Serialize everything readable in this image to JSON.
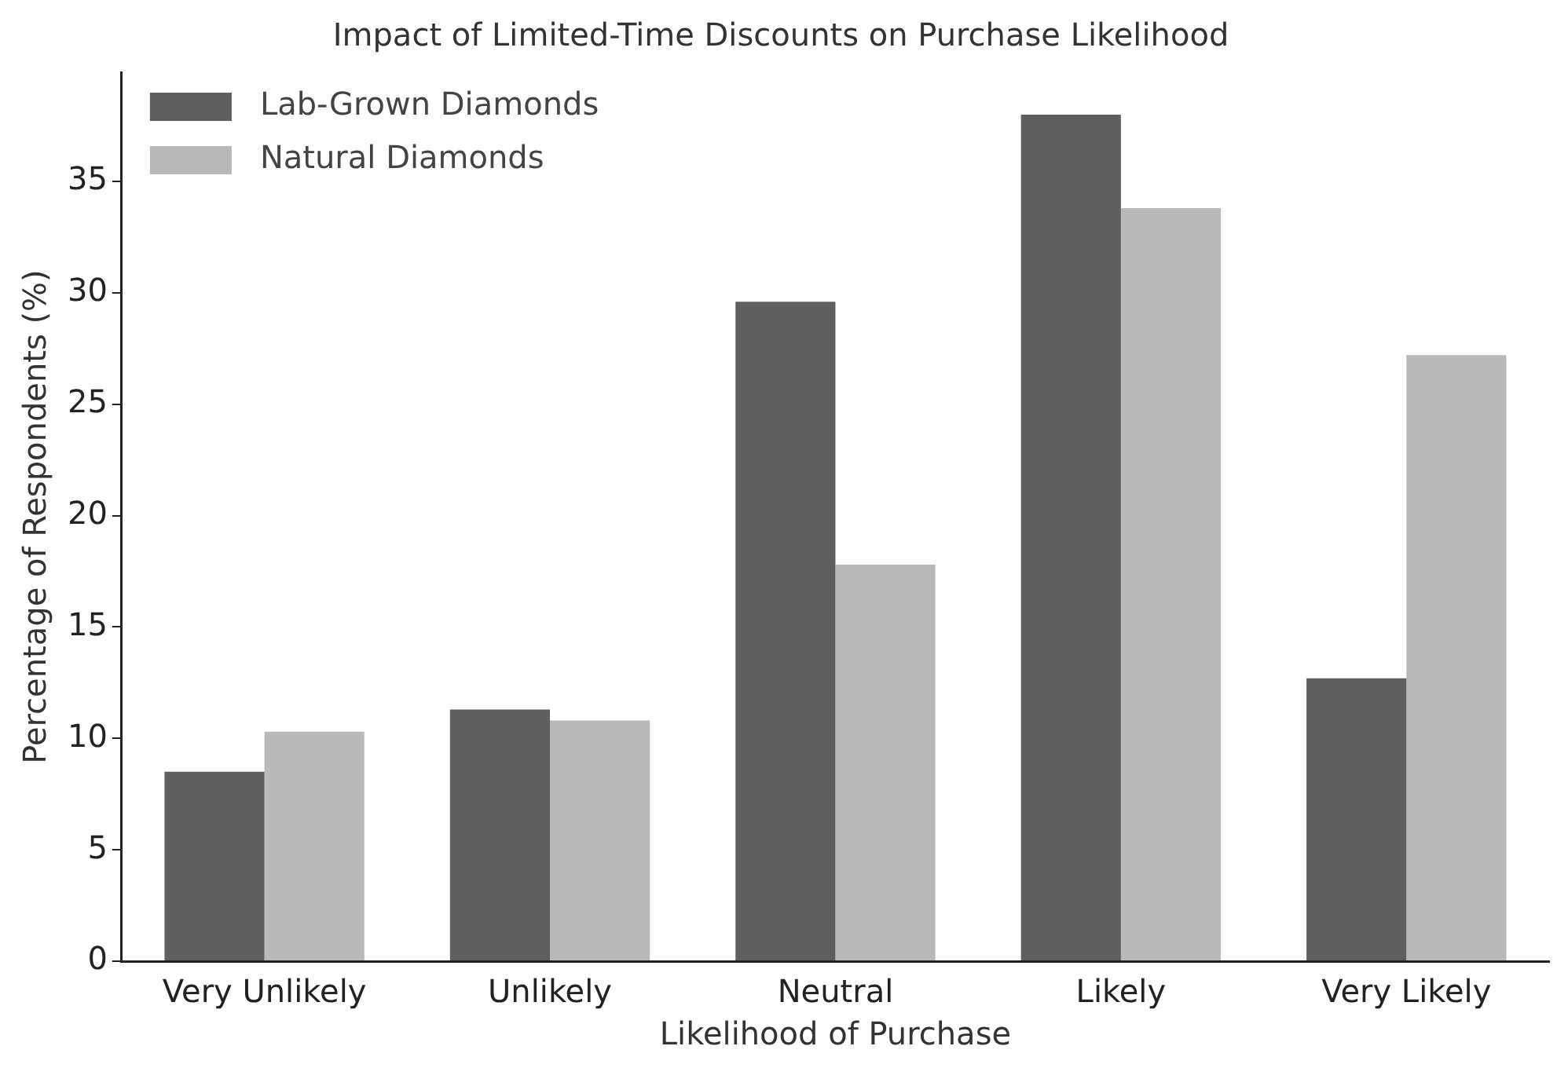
{
  "chart_data": {
    "type": "bar",
    "title": "Impact of Limited-Time Discounts on Purchase Likelihood",
    "xlabel": "Likelihood of Purchase",
    "ylabel": "Percentage of Respondents (%)",
    "categories": [
      "Very Unlikely",
      "Unlikely",
      "Neutral",
      "Likely",
      "Very Likely"
    ],
    "series": [
      {
        "name": "Lab-Grown Diamonds",
        "color": "#5f5f5f",
        "values": [
          8.5,
          11.3,
          29.6,
          38.0,
          12.7
        ]
      },
      {
        "name": "Natural Diamonds",
        "color": "#b9b9b9",
        "values": [
          10.3,
          10.8,
          17.8,
          33.8,
          27.2
        ]
      }
    ],
    "ylim": [
      0,
      39.9
    ],
    "yticks": [
      0,
      5,
      10,
      15,
      20,
      25,
      30,
      35
    ],
    "grid": false,
    "legend": "top left"
  }
}
